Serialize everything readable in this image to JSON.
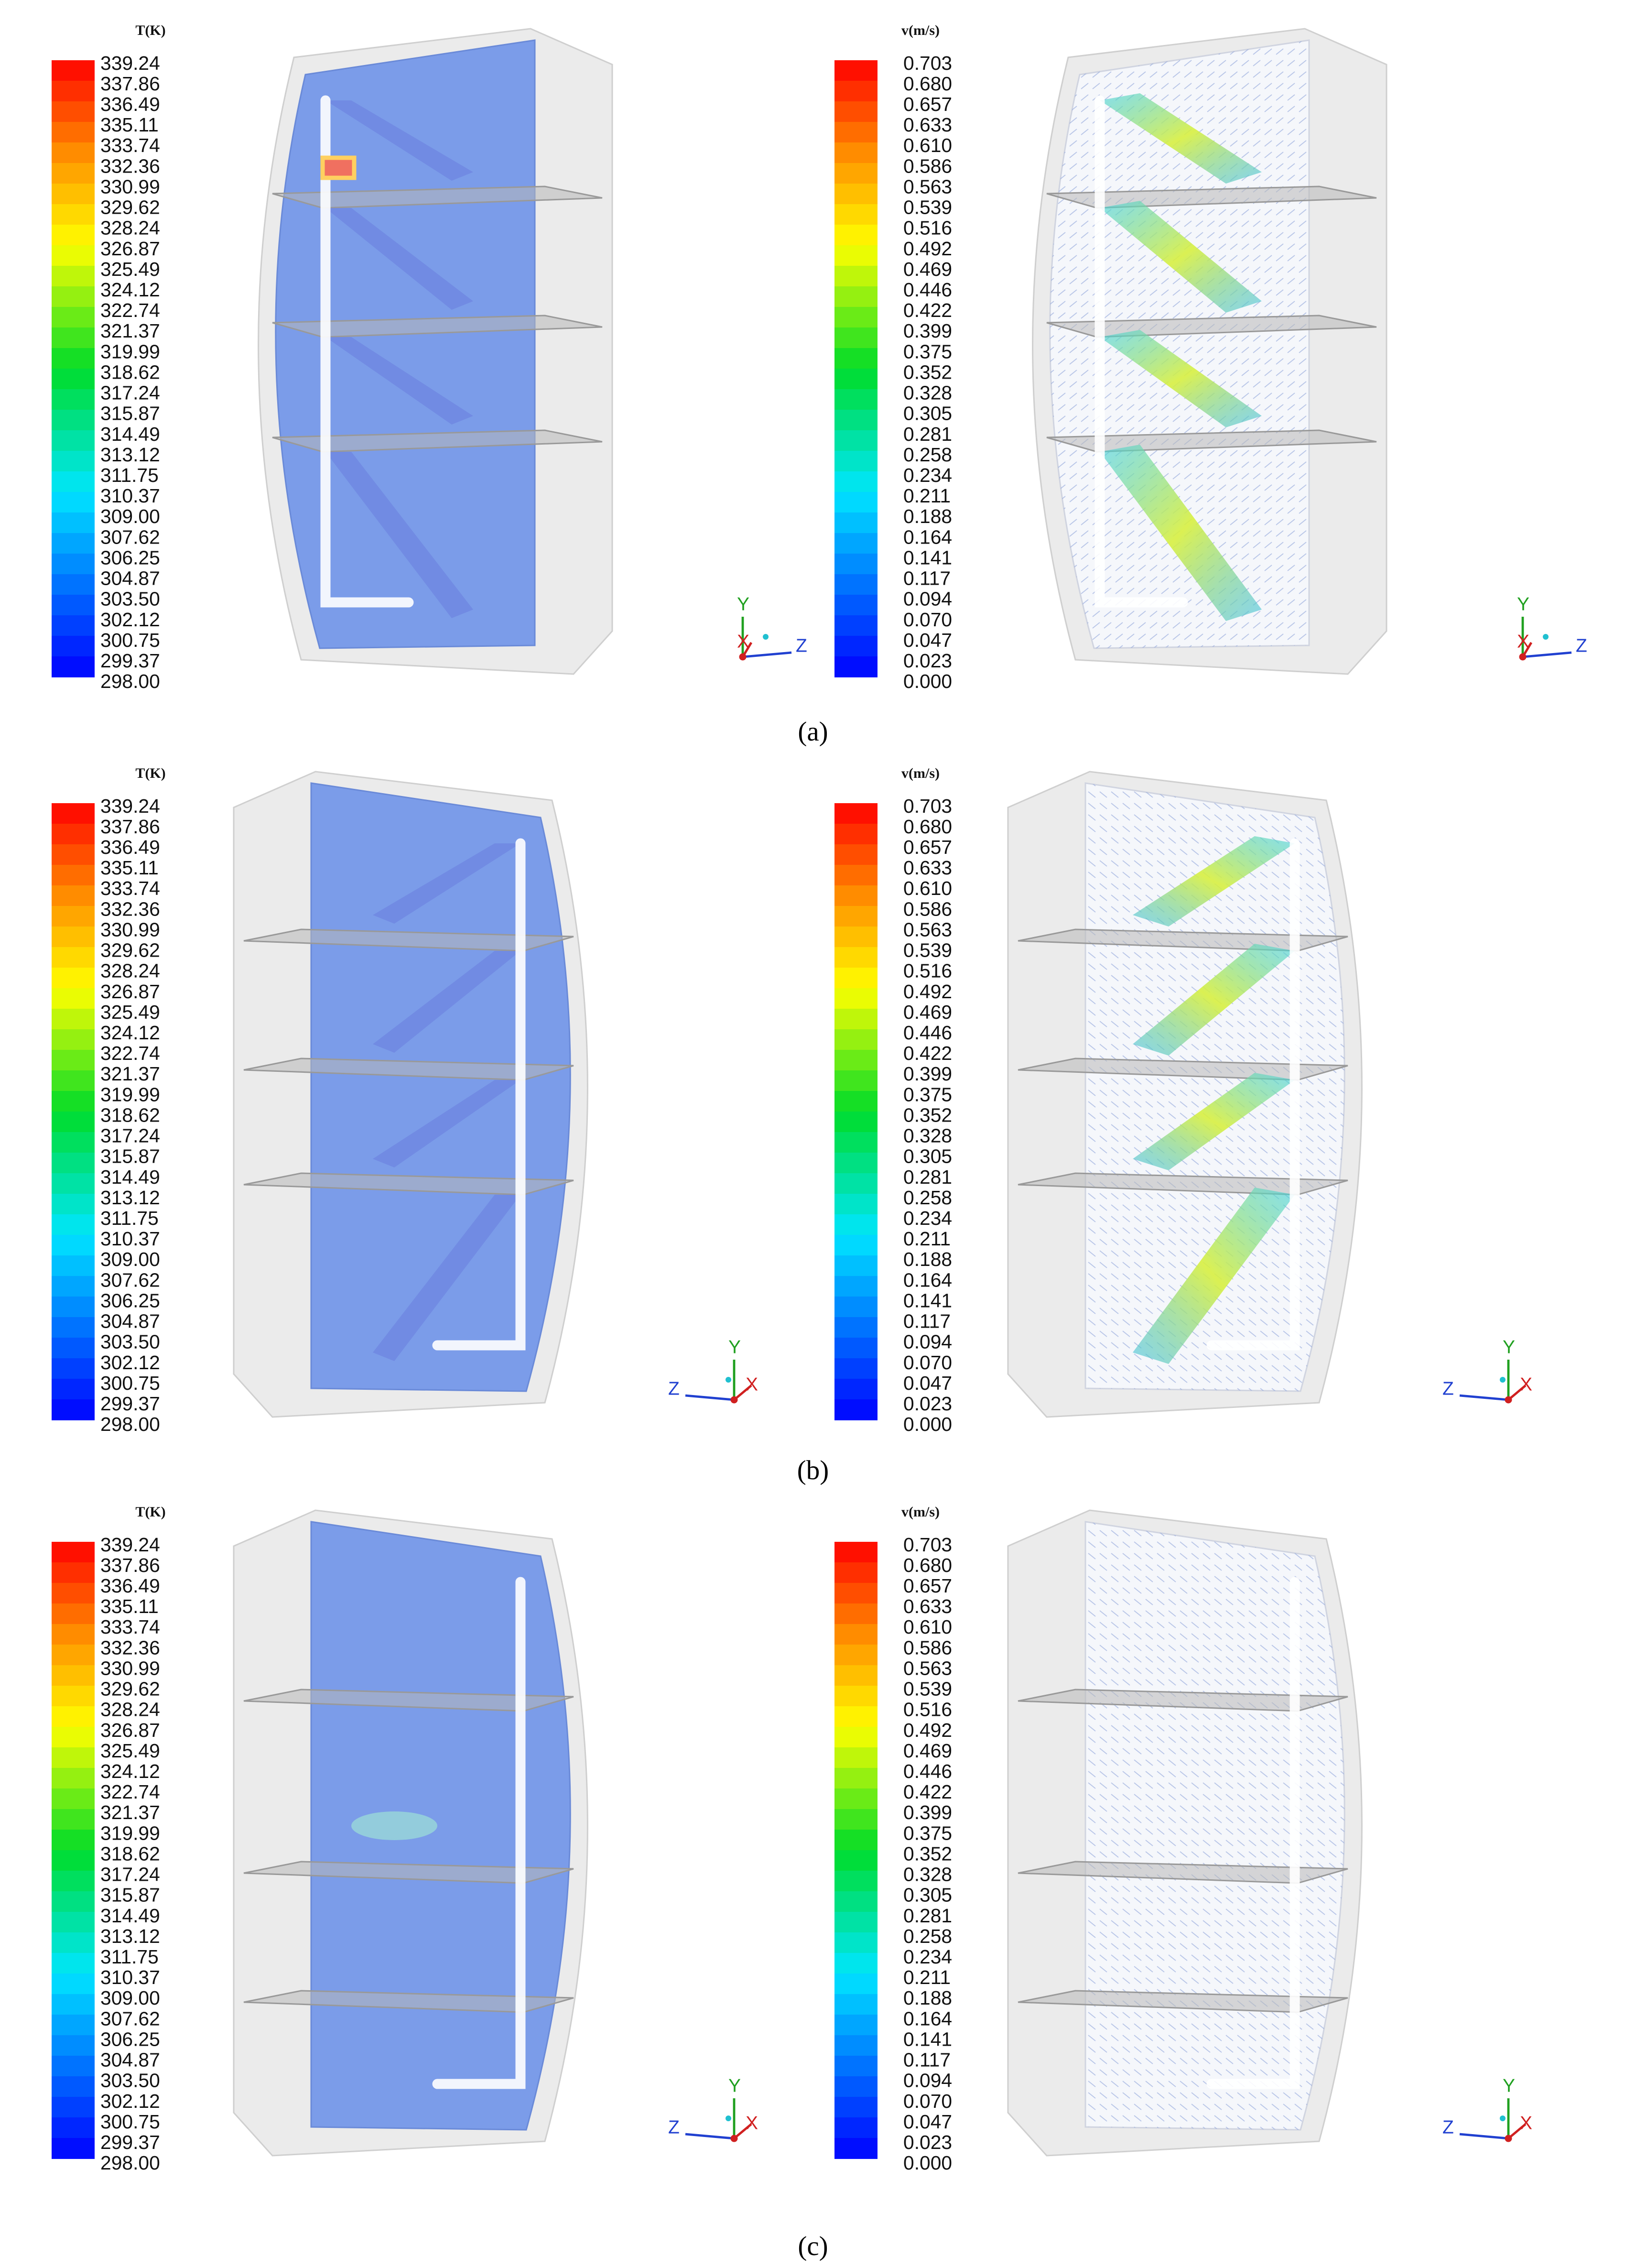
{
  "temperature_legend": {
    "title": "T(K)",
    "labels": [
      "339.24",
      "337.86",
      "336.49",
      "335.11",
      "333.74",
      "332.36",
      "330.99",
      "329.62",
      "328.24",
      "326.87",
      "325.49",
      "324.12",
      "322.74",
      "321.37",
      "319.99",
      "318.62",
      "317.24",
      "315.87",
      "314.49",
      "313.12",
      "311.75",
      "310.37",
      "309.00",
      "307.62",
      "306.25",
      "304.87",
      "303.50",
      "302.12",
      "300.75",
      "299.37",
      "298.00"
    ]
  },
  "velocity_legend": {
    "title": "v(m/s)",
    "labels": [
      "0.703",
      "0.680",
      "0.657",
      "0.633",
      "0.610",
      "0.586",
      "0.563",
      "0.539",
      "0.516",
      "0.492",
      "0.469",
      "0.446",
      "0.422",
      "0.399",
      "0.375",
      "0.352",
      "0.328",
      "0.305",
      "0.281",
      "0.258",
      "0.234",
      "0.211",
      "0.188",
      "0.164",
      "0.141",
      "0.117",
      "0.094",
      "0.070",
      "0.047",
      "0.023",
      "0.000"
    ]
  },
  "axes": {
    "x": "X",
    "y": "Y",
    "z": "Z"
  },
  "panels": [
    {
      "caption": "(a)"
    },
    {
      "caption": "(b)"
    },
    {
      "caption": "(c)"
    }
  ]
}
